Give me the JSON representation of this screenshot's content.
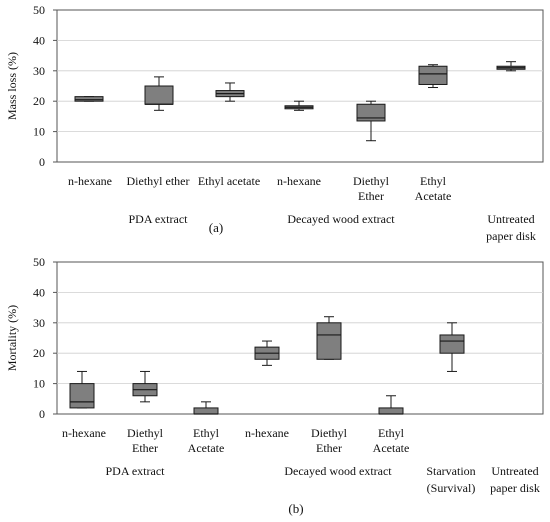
{
  "figure": {
    "panels": [
      {
        "panel_label": "(a)",
        "ylabel": "Mass loss (%)",
        "group_labels": [
          "PDA extract",
          "Decayed wood extract",
          "Untreated paper disk"
        ]
      },
      {
        "panel_label": "(b)",
        "ylabel": "Mortality (%)",
        "group_labels": [
          "PDA extract",
          "Decayed wood extract",
          "Starvation (Survival)",
          "Untreated paper disk"
        ]
      }
    ]
  },
  "colors": {
    "box_fill": "#7f7f7f",
    "box_stroke": "#1a1a1a",
    "axis": "#555555",
    "grid": "#cfcfcf"
  },
  "chart_data": [
    {
      "type": "box",
      "ylabel": "Mass loss (%)",
      "ylim": [
        0,
        50
      ],
      "yticks": [
        0,
        10,
        20,
        30,
        40,
        50
      ],
      "grid": true,
      "categories": [
        "n-hexane",
        "Diethyl ether",
        "Ethyl acetate",
        "n-hexane",
        "Diethyl Ether",
        "Ethyl Acetate",
        ""
      ],
      "groups": [
        "PDA extract",
        "PDA extract",
        "PDA extract",
        "Decayed wood extract",
        "Decayed wood extract",
        "Decayed wood extract",
        "Untreated paper disk"
      ],
      "boxes": [
        {
          "min": 20,
          "q1": 20,
          "median": 20.5,
          "q3": 21.5,
          "max": 21.5
        },
        {
          "min": 17,
          "q1": 19,
          "median": 19,
          "q3": 25,
          "max": 28
        },
        {
          "min": 20,
          "q1": 21.5,
          "median": 22.5,
          "q3": 23.5,
          "max": 26
        },
        {
          "min": 17,
          "q1": 17.5,
          "median": 18,
          "q3": 18.5,
          "max": 20
        },
        {
          "min": 7,
          "q1": 13.5,
          "median": 14.5,
          "q3": 19,
          "max": 20
        },
        {
          "min": 24.5,
          "q1": 25.5,
          "median": 29,
          "q3": 31.5,
          "max": 32
        },
        {
          "min": 30,
          "q1": 30.5,
          "median": 31,
          "q3": 31.5,
          "max": 33
        }
      ]
    },
    {
      "type": "box",
      "ylabel": "Mortality (%)",
      "ylim": [
        0,
        50
      ],
      "yticks": [
        0,
        10,
        20,
        30,
        40,
        50
      ],
      "grid": true,
      "categories": [
        "n-hexane",
        "Diethyl Ether",
        "Ethyl Acetate",
        "n-hexane",
        "Diethyl Ether",
        "Ethyl Acetate",
        "",
        ""
      ],
      "groups": [
        "PDA extract",
        "PDA extract",
        "PDA extract",
        "Decayed wood extract",
        "Decayed wood extract",
        "Decayed wood extract",
        "Starvation (Survival)",
        "Untreated paper disk"
      ],
      "boxes": [
        {
          "min": 2,
          "q1": 2,
          "median": 4,
          "q3": 10,
          "max": 14
        },
        {
          "min": 4,
          "q1": 6,
          "median": 8,
          "q3": 10,
          "max": 14
        },
        {
          "min": 0,
          "q1": 0,
          "median": 0,
          "q3": 2,
          "max": 4
        },
        {
          "min": 16,
          "q1": 18,
          "median": 20,
          "q3": 22,
          "max": 24
        },
        {
          "min": 18,
          "q1": 18,
          "median": 26,
          "q3": 30,
          "max": 32
        },
        {
          "min": 0,
          "q1": 0,
          "median": 0,
          "q3": 2,
          "max": 6
        },
        {
          "min": 14,
          "q1": 20,
          "median": 24,
          "q3": 26,
          "max": 30
        },
        null
      ]
    }
  ]
}
